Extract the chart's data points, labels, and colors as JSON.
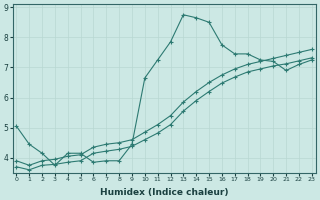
{
  "xlabel": "Humidex (Indice chaleur)",
  "background_color": "#cce8e4",
  "grid_color": "#b8d8d2",
  "line_color": "#2d7a72",
  "line1": {
    "x": [
      0,
      1,
      2,
      3,
      4,
      5,
      6,
      7,
      8,
      9,
      10,
      11,
      12,
      13,
      14,
      15,
      16,
      17,
      18,
      19,
      20,
      21,
      22,
      23
    ],
    "y": [
      5.05,
      4.45,
      4.15,
      3.75,
      4.15,
      4.15,
      3.85,
      3.9,
      3.9,
      4.45,
      6.65,
      7.25,
      7.85,
      8.75,
      8.65,
      8.5,
      7.75,
      7.45,
      7.45,
      7.25,
      7.2,
      6.9,
      7.1,
      7.25
    ]
  },
  "line2": {
    "x": [
      0,
      1,
      2,
      3,
      4,
      5,
      6,
      7,
      8,
      9,
      10,
      11,
      12,
      13,
      14,
      15,
      16,
      17,
      18,
      19,
      20,
      21,
      22,
      23
    ],
    "y": [
      3.9,
      3.75,
      3.9,
      3.95,
      4.05,
      4.1,
      4.35,
      4.45,
      4.5,
      4.6,
      4.85,
      5.1,
      5.4,
      5.85,
      6.2,
      6.5,
      6.75,
      6.95,
      7.1,
      7.2,
      7.3,
      7.4,
      7.5,
      7.6
    ]
  },
  "line3": {
    "x": [
      0,
      1,
      2,
      3,
      4,
      5,
      6,
      7,
      8,
      9,
      10,
      11,
      12,
      13,
      14,
      15,
      16,
      17,
      18,
      19,
      20,
      21,
      22,
      23
    ],
    "y": [
      3.7,
      3.6,
      3.75,
      3.78,
      3.85,
      3.9,
      4.15,
      4.22,
      4.28,
      4.38,
      4.6,
      4.82,
      5.1,
      5.55,
      5.9,
      6.2,
      6.48,
      6.68,
      6.85,
      6.95,
      7.05,
      7.12,
      7.22,
      7.32
    ]
  },
  "xlim": [
    -0.3,
    23.3
  ],
  "ylim": [
    3.5,
    9.1
  ],
  "yticks": [
    4,
    5,
    6,
    7,
    8,
    9
  ],
  "xticks": [
    0,
    1,
    2,
    3,
    4,
    5,
    6,
    7,
    8,
    9,
    10,
    11,
    12,
    13,
    14,
    15,
    16,
    17,
    18,
    19,
    20,
    21,
    22,
    23
  ]
}
